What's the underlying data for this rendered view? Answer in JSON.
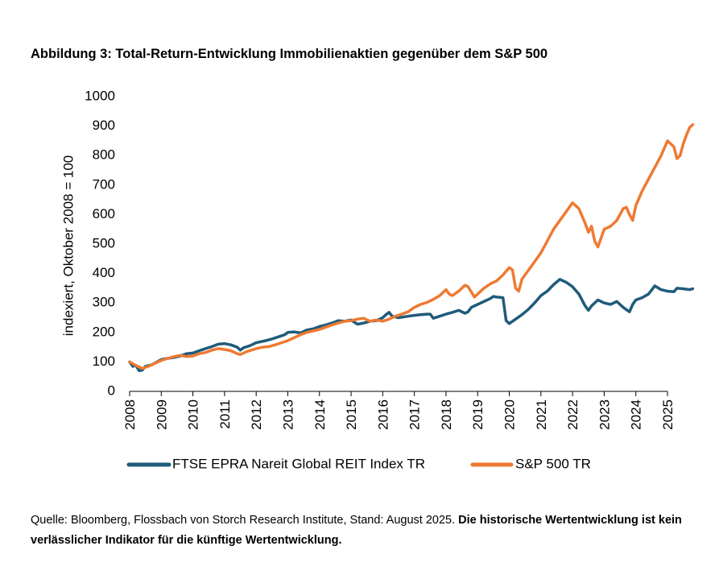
{
  "title": "Abbildung 3: Total-Return-Entwicklung Immobilienaktien gegenüber dem S&P 500",
  "source": {
    "prefix": "Quelle: Bloomberg, Flossbach von Storch Research Institute, Stand: August 2025. ",
    "bold": "Die historische Wertentwicklung ist kein verlässlicher Indikator für die künftige Wertentwicklung."
  },
  "chart_data": {
    "type": "line",
    "title": "Abbildung 3: Total-Return-Entwicklung Immobilienaktien gegenüber dem S&P 500",
    "xlabel": "",
    "ylabel": "indexiert, Oktober  2008 = 100",
    "xlim": [
      2008,
      2025
    ],
    "ylim": [
      0,
      1000
    ],
    "x_ticks": [
      "2008",
      "2009",
      "2010",
      "2011",
      "2012",
      "2013",
      "2014",
      "2015",
      "2016",
      "2017",
      "2018",
      "2019",
      "2020",
      "2021",
      "2022",
      "2023",
      "2024",
      "2025"
    ],
    "y_ticks": [
      0,
      100,
      200,
      300,
      400,
      500,
      600,
      700,
      800,
      900,
      1000
    ],
    "legend_position": "bottom",
    "series": [
      {
        "name": "FTSE EPRA Nareit Global REIT Index TR",
        "color": "#1f5b7a",
        "points": [
          [
            2008.0,
            100
          ],
          [
            2008.1,
            85
          ],
          [
            2008.2,
            88
          ],
          [
            2008.3,
            70
          ],
          [
            2008.4,
            72
          ],
          [
            2008.5,
            85
          ],
          [
            2008.7,
            90
          ],
          [
            2008.9,
            102
          ],
          [
            2009.0,
            108
          ],
          [
            2009.2,
            112
          ],
          [
            2009.4,
            115
          ],
          [
            2009.6,
            120
          ],
          [
            2009.8,
            128
          ],
          [
            2010.0,
            130
          ],
          [
            2010.2,
            138
          ],
          [
            2010.4,
            145
          ],
          [
            2010.6,
            152
          ],
          [
            2010.8,
            160
          ],
          [
            2011.0,
            162
          ],
          [
            2011.2,
            158
          ],
          [
            2011.4,
            150
          ],
          [
            2011.5,
            140
          ],
          [
            2011.6,
            148
          ],
          [
            2011.8,
            155
          ],
          [
            2012.0,
            165
          ],
          [
            2012.3,
            172
          ],
          [
            2012.5,
            178
          ],
          [
            2012.7,
            185
          ],
          [
            2012.9,
            192
          ],
          [
            2013.0,
            200
          ],
          [
            2013.2,
            202
          ],
          [
            2013.4,
            198
          ],
          [
            2013.6,
            208
          ],
          [
            2013.8,
            212
          ],
          [
            2014.0,
            220
          ],
          [
            2014.2,
            225
          ],
          [
            2014.4,
            232
          ],
          [
            2014.6,
            240
          ],
          [
            2014.8,
            238
          ],
          [
            2015.0,
            242
          ],
          [
            2015.1,
            235
          ],
          [
            2015.2,
            228
          ],
          [
            2015.4,
            232
          ],
          [
            2015.6,
            238
          ],
          [
            2015.8,
            240
          ],
          [
            2016.0,
            250
          ],
          [
            2016.1,
            260
          ],
          [
            2016.2,
            268
          ],
          [
            2016.3,
            255
          ],
          [
            2016.5,
            250
          ],
          [
            2016.8,
            255
          ],
          [
            2017.0,
            258
          ],
          [
            2017.2,
            260
          ],
          [
            2017.4,
            262
          ],
          [
            2017.5,
            262
          ],
          [
            2017.6,
            248
          ],
          [
            2017.8,
            255
          ],
          [
            2018.0,
            262
          ],
          [
            2018.2,
            268
          ],
          [
            2018.4,
            275
          ],
          [
            2018.6,
            265
          ],
          [
            2018.7,
            270
          ],
          [
            2018.8,
            285
          ],
          [
            2019.0,
            295
          ],
          [
            2019.2,
            305
          ],
          [
            2019.4,
            315
          ],
          [
            2019.5,
            322
          ],
          [
            2019.6,
            320
          ],
          [
            2019.8,
            318
          ],
          [
            2019.9,
            240
          ],
          [
            2020.0,
            230
          ],
          [
            2020.2,
            245
          ],
          [
            2020.4,
            260
          ],
          [
            2020.6,
            278
          ],
          [
            2020.8,
            300
          ],
          [
            2021.0,
            325
          ],
          [
            2021.2,
            340
          ],
          [
            2021.4,
            362
          ],
          [
            2021.6,
            380
          ],
          [
            2021.8,
            370
          ],
          [
            2022.0,
            355
          ],
          [
            2022.2,
            330
          ],
          [
            2022.4,
            290
          ],
          [
            2022.5,
            275
          ],
          [
            2022.6,
            290
          ],
          [
            2022.8,
            310
          ],
          [
            2023.0,
            300
          ],
          [
            2023.2,
            295
          ],
          [
            2023.4,
            305
          ],
          [
            2023.6,
            285
          ],
          [
            2023.8,
            270
          ],
          [
            2023.9,
            295
          ],
          [
            2024.0,
            310
          ],
          [
            2024.2,
            318
          ],
          [
            2024.4,
            330
          ],
          [
            2024.6,
            358
          ],
          [
            2024.8,
            345
          ],
          [
            2025.0,
            340
          ],
          [
            2025.2,
            338
          ],
          [
            2025.3,
            350
          ],
          [
            2025.5,
            348
          ],
          [
            2025.7,
            345
          ],
          [
            2025.8,
            348
          ]
        ]
      },
      {
        "name": "S&P 500 TR",
        "color": "#ee7a33",
        "points": [
          [
            2008.0,
            100
          ],
          [
            2008.2,
            88
          ],
          [
            2008.4,
            78
          ],
          [
            2008.6,
            85
          ],
          [
            2008.8,
            95
          ],
          [
            2009.0,
            105
          ],
          [
            2009.2,
            112
          ],
          [
            2009.4,
            118
          ],
          [
            2009.6,
            122
          ],
          [
            2009.8,
            118
          ],
          [
            2010.0,
            120
          ],
          [
            2010.2,
            128
          ],
          [
            2010.4,
            132
          ],
          [
            2010.6,
            140
          ],
          [
            2010.8,
            145
          ],
          [
            2011.0,
            142
          ],
          [
            2011.2,
            138
          ],
          [
            2011.4,
            128
          ],
          [
            2011.5,
            125
          ],
          [
            2011.7,
            135
          ],
          [
            2012.0,
            145
          ],
          [
            2012.2,
            150
          ],
          [
            2012.4,
            152
          ],
          [
            2012.6,
            158
          ],
          [
            2012.8,
            165
          ],
          [
            2013.0,
            172
          ],
          [
            2013.2,
            182
          ],
          [
            2013.4,
            192
          ],
          [
            2013.6,
            200
          ],
          [
            2013.8,
            205
          ],
          [
            2014.0,
            210
          ],
          [
            2014.2,
            218
          ],
          [
            2014.4,
            225
          ],
          [
            2014.6,
            232
          ],
          [
            2014.8,
            238
          ],
          [
            2015.0,
            240
          ],
          [
            2015.2,
            245
          ],
          [
            2015.4,
            248
          ],
          [
            2015.6,
            238
          ],
          [
            2015.8,
            242
          ],
          [
            2016.0,
            238
          ],
          [
            2016.2,
            245
          ],
          [
            2016.4,
            255
          ],
          [
            2016.6,
            262
          ],
          [
            2016.8,
            270
          ],
          [
            2017.0,
            285
          ],
          [
            2017.2,
            295
          ],
          [
            2017.4,
            302
          ],
          [
            2017.6,
            312
          ],
          [
            2017.8,
            325
          ],
          [
            2018.0,
            345
          ],
          [
            2018.1,
            330
          ],
          [
            2018.2,
            325
          ],
          [
            2018.4,
            340
          ],
          [
            2018.6,
            360
          ],
          [
            2018.7,
            355
          ],
          [
            2018.9,
            320
          ],
          [
            2019.0,
            330
          ],
          [
            2019.2,
            350
          ],
          [
            2019.4,
            365
          ],
          [
            2019.6,
            375
          ],
          [
            2019.8,
            395
          ],
          [
            2020.0,
            420
          ],
          [
            2020.1,
            412
          ],
          [
            2020.2,
            350
          ],
          [
            2020.3,
            340
          ],
          [
            2020.4,
            380
          ],
          [
            2020.6,
            410
          ],
          [
            2020.8,
            440
          ],
          [
            2021.0,
            470
          ],
          [
            2021.2,
            510
          ],
          [
            2021.4,
            550
          ],
          [
            2021.6,
            580
          ],
          [
            2021.8,
            610
          ],
          [
            2022.0,
            640
          ],
          [
            2022.2,
            620
          ],
          [
            2022.4,
            570
          ],
          [
            2022.5,
            540
          ],
          [
            2022.6,
            560
          ],
          [
            2022.7,
            510
          ],
          [
            2022.8,
            490
          ],
          [
            2022.9,
            520
          ],
          [
            2023.0,
            550
          ],
          [
            2023.2,
            560
          ],
          [
            2023.4,
            580
          ],
          [
            2023.6,
            620
          ],
          [
            2023.7,
            625
          ],
          [
            2023.8,
            600
          ],
          [
            2023.9,
            580
          ],
          [
            2024.0,
            630
          ],
          [
            2024.2,
            680
          ],
          [
            2024.4,
            720
          ],
          [
            2024.6,
            760
          ],
          [
            2024.8,
            800
          ],
          [
            2025.0,
            850
          ],
          [
            2025.2,
            830
          ],
          [
            2025.3,
            790
          ],
          [
            2025.4,
            800
          ],
          [
            2025.5,
            840
          ],
          [
            2025.6,
            870
          ],
          [
            2025.7,
            895
          ],
          [
            2025.8,
            905
          ]
        ]
      }
    ]
  }
}
